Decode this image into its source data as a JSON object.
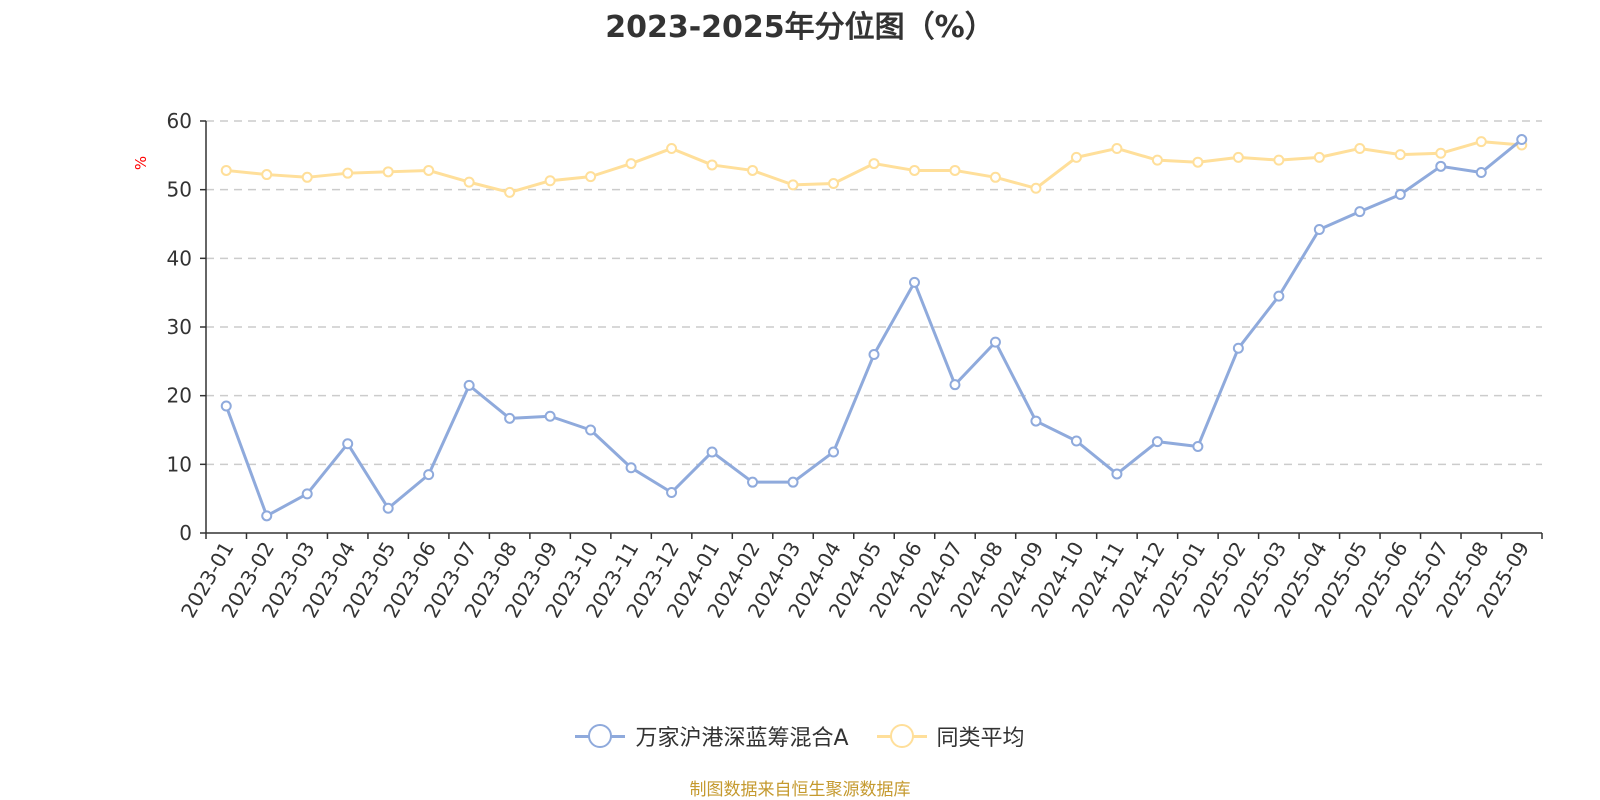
{
  "chart_data": {
    "type": "line",
    "title": "2023-2025年分位图（%）",
    "ylabel": "%",
    "ylim": [
      0,
      60
    ],
    "yticks": [
      0,
      10,
      20,
      30,
      40,
      50,
      60
    ],
    "grid": "horizontal-dashed",
    "legend_position": "bottom",
    "x": [
      "2023-01",
      "2023-02",
      "2023-03",
      "2023-04",
      "2023-05",
      "2023-06",
      "2023-07",
      "2023-08",
      "2023-09",
      "2023-10",
      "2023-11",
      "2023-12",
      "2024-01",
      "2024-02",
      "2024-03",
      "2024-04",
      "2024-05",
      "2024-06",
      "2024-07",
      "2024-08",
      "2024-09",
      "2024-10",
      "2024-11",
      "2024-12",
      "2025-01",
      "2025-02",
      "2025-03",
      "2025-04",
      "2025-05",
      "2025-06",
      "2025-07",
      "2025-08",
      "2025-09"
    ],
    "series": [
      {
        "name": "万家沪港深蓝筹混合A",
        "color": "#8faadc",
        "values": [
          18.5,
          2.5,
          5.7,
          13.0,
          3.6,
          8.5,
          21.5,
          16.7,
          17.0,
          15.0,
          9.5,
          5.9,
          11.8,
          7.4,
          7.4,
          11.8,
          26.0,
          36.5,
          21.6,
          27.8,
          16.3,
          13.4,
          8.6,
          13.3,
          12.6,
          26.9,
          34.5,
          44.2,
          46.8,
          49.3,
          53.4,
          52.5,
          57.3
        ]
      },
      {
        "name": "同类平均",
        "color": "#ffdf9a",
        "values": [
          52.8,
          52.2,
          51.8,
          52.4,
          52.6,
          52.8,
          51.1,
          49.6,
          51.3,
          51.9,
          53.8,
          56.0,
          53.6,
          52.8,
          50.7,
          50.9,
          53.8,
          52.8,
          52.8,
          51.8,
          50.2,
          54.7,
          56.0,
          54.3,
          54.0,
          54.7,
          54.3,
          54.7,
          56.0,
          55.1,
          55.3,
          57.0,
          56.5
        ]
      }
    ]
  },
  "source_text": "制图数据来自恒生聚源数据库",
  "colors": {
    "axis": "#333333",
    "grid": "#cccccc",
    "ylabel": "#ff0000",
    "source": "#c59a2f"
  }
}
